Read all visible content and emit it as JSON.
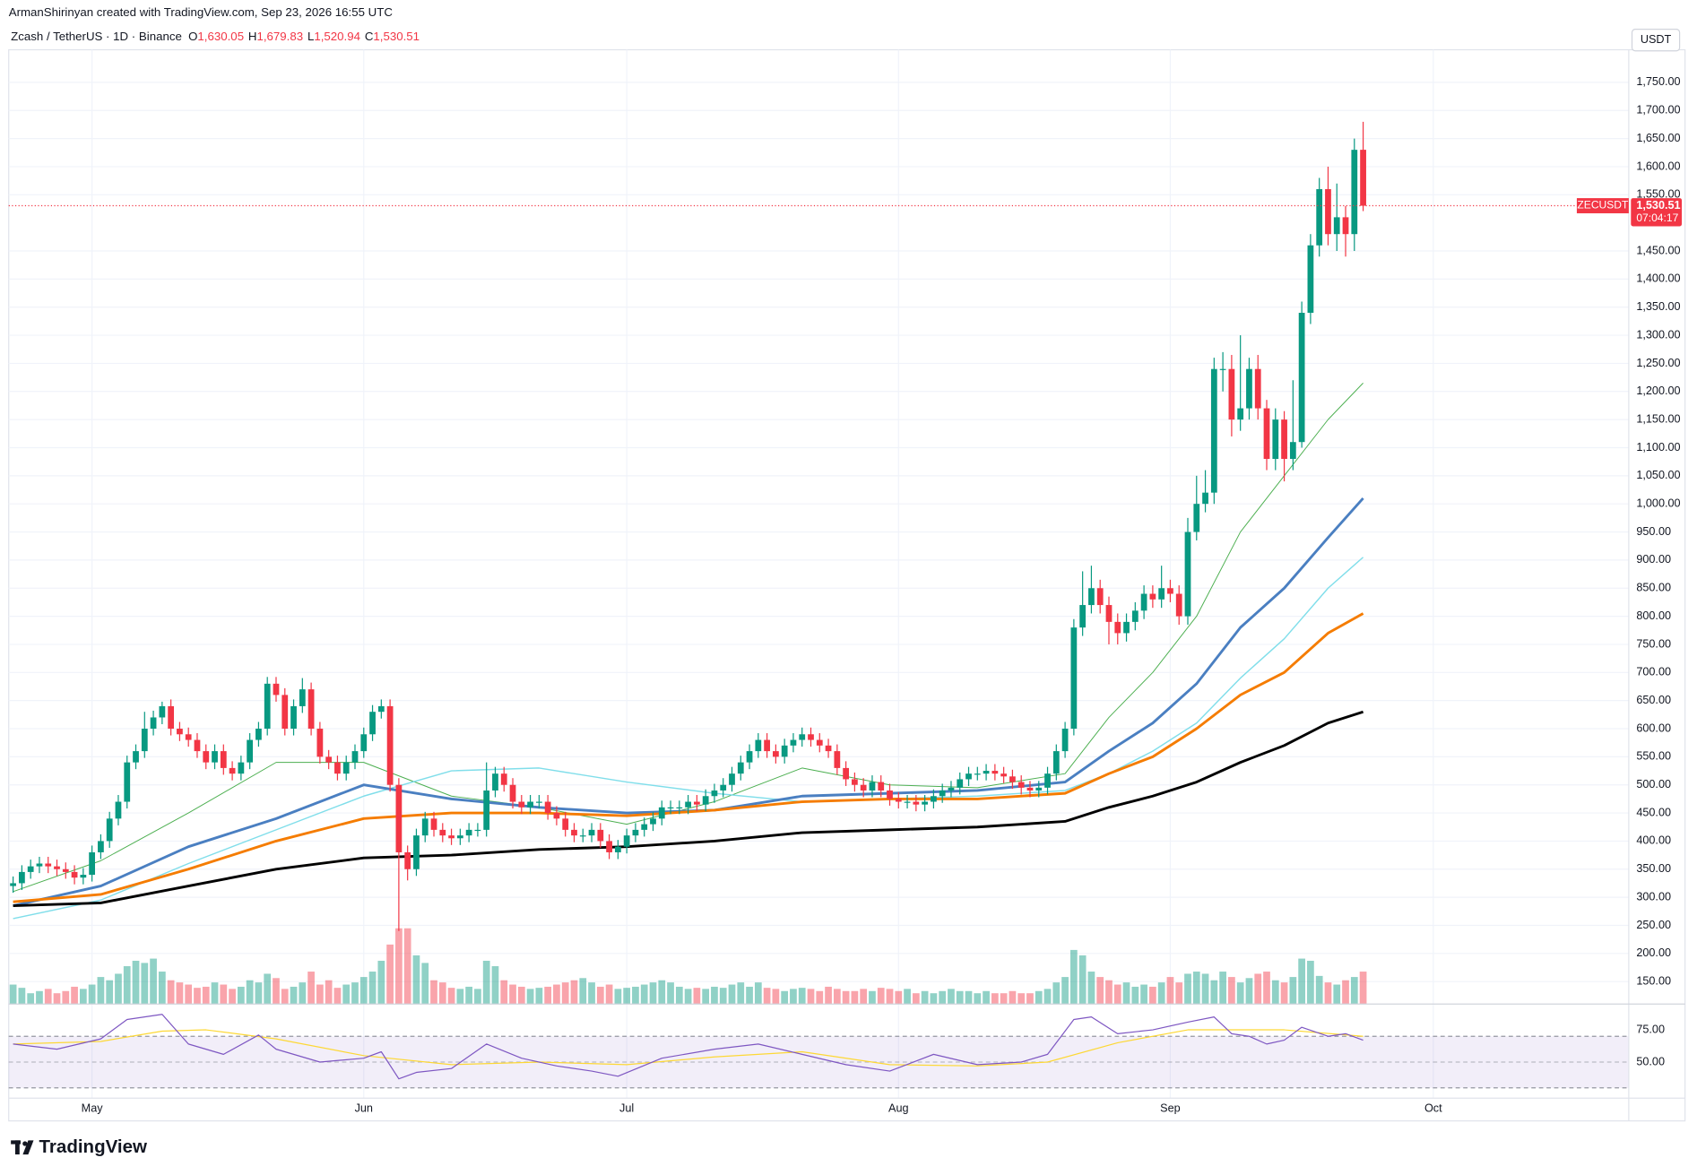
{
  "header": {
    "credit": "ArmanShirinyan created with TradingView.com, Sep 23, 2026 16:55 UTC",
    "logo": "TradingView"
  },
  "chart_data": {
    "type": "candlestick",
    "title": "Zcash / TetherUS · 1D · Binance",
    "ohlc_legend": [
      {
        "key": "O",
        "text": "1,630.05"
      },
      {
        "key": "H",
        "text": "1,679.83"
      },
      {
        "key": "L",
        "text": "1,520.94"
      },
      {
        "key": "C",
        "text": "1,530.51"
      }
    ],
    "currency": "USDT",
    "symbol_tag": "ZECUSDT",
    "price_tag": "1,530.51",
    "countdown": "07:04:17",
    "up_color": "#089981",
    "down_color": "#f23645",
    "open": [
      320,
      325,
      345,
      355,
      360,
      355,
      350,
      345,
      335,
      340,
      380,
      400,
      440,
      470,
      540,
      560,
      600,
      620,
      640,
      600,
      590,
      580,
      560,
      540,
      560,
      530,
      520,
      540,
      580,
      600,
      680,
      660,
      600,
      640,
      670,
      600,
      550,
      540,
      520,
      540,
      560,
      590,
      630,
      640,
      500,
      380,
      350,
      410,
      440,
      420,
      410,
      405,
      410,
      420,
      420,
      490,
      520,
      500,
      470,
      460,
      470,
      470,
      450,
      440,
      420,
      410,
      410,
      420,
      400,
      380,
      390,
      410,
      420,
      430,
      440,
      460,
      460,
      460,
      470,
      465,
      480,
      490,
      500,
      520,
      540,
      560,
      580,
      560,
      550,
      570,
      580,
      590,
      580,
      570,
      560,
      530,
      510,
      500,
      490,
      505,
      490,
      475,
      470,
      470,
      465,
      470,
      480,
      490,
      495,
      510,
      520,
      520,
      525,
      520,
      515,
      505,
      495,
      490,
      495,
      520,
      560,
      600,
      780,
      820,
      850,
      820,
      790,
      770,
      790,
      810,
      840,
      830,
      850,
      840,
      800,
      950,
      1000,
      1020,
      1240,
      1240,
      1150,
      1170,
      1240,
      1170,
      1080,
      1150,
      1080,
      1110,
      1340,
      1460,
      1560,
      1480,
      1510,
      1480,
      1630.05
    ],
    "high": [
      337,
      357,
      367,
      372,
      372,
      367,
      362,
      357,
      352,
      392,
      412,
      452,
      482,
      552,
      572,
      630,
      632,
      648,
      652,
      612,
      602,
      592,
      572,
      572,
      572,
      542,
      552,
      592,
      612,
      692,
      692,
      672,
      652,
      690,
      682,
      612,
      562,
      552,
      552,
      572,
      602,
      642,
      652,
      652,
      512,
      392,
      422,
      452,
      452,
      432,
      422,
      422,
      432,
      432,
      540,
      532,
      532,
      512,
      482,
      482,
      482,
      482,
      462,
      452,
      432,
      422,
      432,
      432,
      412,
      402,
      422,
      432,
      442,
      452,
      472,
      472,
      472,
      482,
      482,
      492,
      502,
      512,
      532,
      552,
      572,
      592,
      592,
      572,
      582,
      592,
      602,
      602,
      592,
      582,
      572,
      542,
      522,
      512,
      517,
      517,
      502,
      487,
      482,
      482,
      482,
      492,
      502,
      507,
      522,
      532,
      532,
      537,
      537,
      532,
      527,
      517,
      507,
      507,
      532,
      572,
      612,
      795,
      880,
      890,
      865,
      835,
      805,
      805,
      825,
      855,
      855,
      890,
      865,
      855,
      975,
      1050,
      1060,
      1260,
      1270,
      1265,
      1300,
      1260,
      1265,
      1185,
      1170,
      1165,
      1220,
      1360,
      1480,
      1580,
      1600,
      1570,
      1530,
      1650,
      1679.83
    ],
    "low": [
      308,
      313,
      333,
      343,
      343,
      338,
      333,
      323,
      323,
      328,
      368,
      388,
      428,
      458,
      528,
      548,
      588,
      608,
      588,
      578,
      568,
      548,
      528,
      528,
      518,
      508,
      508,
      528,
      568,
      588,
      648,
      588,
      588,
      628,
      588,
      538,
      528,
      508,
      508,
      528,
      548,
      578,
      618,
      488,
      240,
      330,
      338,
      398,
      408,
      398,
      393,
      393,
      398,
      408,
      408,
      478,
      488,
      458,
      448,
      448,
      458,
      438,
      428,
      408,
      398,
      398,
      398,
      388,
      368,
      368,
      378,
      398,
      408,
      418,
      428,
      448,
      448,
      448,
      453,
      453,
      468,
      478,
      488,
      508,
      528,
      548,
      548,
      538,
      538,
      558,
      568,
      568,
      558,
      548,
      518,
      498,
      488,
      478,
      478,
      478,
      463,
      458,
      458,
      453,
      453,
      458,
      468,
      478,
      483,
      498,
      508,
      508,
      508,
      503,
      493,
      483,
      478,
      478,
      483,
      508,
      548,
      588,
      765,
      805,
      805,
      750,
      750,
      755,
      775,
      795,
      815,
      815,
      825,
      785,
      785,
      935,
      985,
      1000,
      1200,
      1120,
      1130,
      1150,
      1150,
      1060,
      1060,
      1040,
      1060,
      1100,
      1320,
      1440,
      1460,
      1450,
      1440,
      1450,
      1520.94
    ],
    "close": [
      325,
      345,
      355,
      360,
      355,
      350,
      345,
      335,
      340,
      380,
      400,
      440,
      470,
      540,
      560,
      600,
      620,
      640,
      600,
      590,
      580,
      560,
      540,
      560,
      530,
      520,
      540,
      580,
      600,
      680,
      660,
      600,
      640,
      670,
      600,
      550,
      540,
      520,
      540,
      560,
      590,
      630,
      640,
      500,
      380,
      350,
      410,
      440,
      420,
      410,
      405,
      410,
      420,
      420,
      490,
      520,
      500,
      470,
      460,
      470,
      470,
      450,
      440,
      420,
      410,
      410,
      420,
      400,
      380,
      390,
      410,
      420,
      430,
      440,
      460,
      460,
      460,
      470,
      465,
      480,
      490,
      500,
      520,
      540,
      560,
      580,
      560,
      550,
      570,
      580,
      590,
      580,
      570,
      560,
      530,
      510,
      500,
      490,
      505,
      490,
      475,
      470,
      470,
      465,
      470,
      480,
      490,
      495,
      510,
      520,
      520,
      525,
      520,
      515,
      505,
      495,
      490,
      495,
      520,
      560,
      600,
      780,
      820,
      850,
      820,
      790,
      770,
      790,
      810,
      840,
      830,
      850,
      840,
      800,
      950,
      1000,
      1020,
      1240,
      1240,
      1150,
      1170,
      1240,
      1170,
      1080,
      1150,
      1080,
      1110,
      1340,
      1460,
      1560,
      1480,
      1510,
      1480,
      1630,
      1530.51
    ],
    "volume": [
      18,
      15,
      10,
      12,
      14,
      10,
      12,
      16,
      14,
      18,
      25,
      22,
      28,
      35,
      40,
      38,
      42,
      30,
      22,
      20,
      18,
      15,
      16,
      20,
      18,
      14,
      16,
      22,
      20,
      28,
      24,
      14,
      16,
      20,
      30,
      18,
      22,
      15,
      18,
      20,
      25,
      30,
      40,
      55,
      70,
      70,
      45,
      38,
      22,
      20,
      15,
      14,
      16,
      14,
      40,
      35,
      22,
      18,
      16,
      14,
      15,
      16,
      18,
      20,
      22,
      24,
      20,
      16,
      18,
      14,
      15,
      16,
      18,
      20,
      22,
      20,
      16,
      14,
      15,
      14,
      16,
      15,
      18,
      20,
      16,
      20,
      15,
      14,
      12,
      14,
      15,
      14,
      12,
      16,
      14,
      12,
      12,
      14,
      12,
      15,
      14,
      12,
      14,
      10,
      12,
      10,
      12,
      14,
      12,
      12,
      10,
      12,
      10,
      10,
      12,
      10,
      10,
      12,
      14,
      20,
      25,
      50,
      45,
      30,
      25,
      22,
      18,
      20,
      16,
      18,
      16,
      20,
      25,
      20,
      28,
      30,
      28,
      22,
      30,
      25,
      20,
      24,
      28,
      30,
      22,
      20,
      25,
      42,
      40,
      26,
      20,
      18,
      22,
      25,
      30
    ],
    "xlim": [
      -0.5,
      184.3
    ],
    "xticks": [
      {
        "value": 9,
        "label": "May"
      },
      {
        "value": 40,
        "label": "Jun"
      },
      {
        "value": 70,
        "label": "Jul"
      },
      {
        "value": 101,
        "label": "Aug"
      },
      {
        "value": 132,
        "label": "Sep"
      },
      {
        "value": 162,
        "label": "Oct"
      }
    ],
    "ylim": [
      110,
      1808
    ],
    "yticks": [
      {
        "value": 150,
        "label": "150.00"
      },
      {
        "value": 200,
        "label": "200.00"
      },
      {
        "value": 250,
        "label": "250.00"
      },
      {
        "value": 300,
        "label": "300.00"
      },
      {
        "value": 350,
        "label": "350.00"
      },
      {
        "value": 400,
        "label": "400.00"
      },
      {
        "value": 450,
        "label": "450.00"
      },
      {
        "value": 500,
        "label": "500.00"
      },
      {
        "value": 550,
        "label": "550.00"
      },
      {
        "value": 600,
        "label": "600.00"
      },
      {
        "value": 650,
        "label": "650.00"
      },
      {
        "value": 700,
        "label": "700.00"
      },
      {
        "value": 750,
        "label": "750.00"
      },
      {
        "value": 800,
        "label": "800.00"
      },
      {
        "value": 850,
        "label": "850.00"
      },
      {
        "value": 900,
        "label": "900.00"
      },
      {
        "value": 950,
        "label": "950.00"
      },
      {
        "value": 1000,
        "label": "1,000.00"
      },
      {
        "value": 1050,
        "label": "1,050.00"
      },
      {
        "value": 1100,
        "label": "1,100.00"
      },
      {
        "value": 1150,
        "label": "1,150.00"
      },
      {
        "value": 1200,
        "label": "1,200.00"
      },
      {
        "value": 1250,
        "label": "1,250.00"
      },
      {
        "value": 1300,
        "label": "1,300.00"
      },
      {
        "value": 1350,
        "label": "1,350.00"
      },
      {
        "value": 1400,
        "label": "1,400.00"
      },
      {
        "value": 1450,
        "label": "1,450.00"
      },
      {
        "value": 1550,
        "label": "1,550.00"
      },
      {
        "value": 1600,
        "label": "1,600.00"
      },
      {
        "value": 1650,
        "label": "1,650.00"
      },
      {
        "value": 1700,
        "label": "1,700.00"
      },
      {
        "value": 1750,
        "label": "1,750.00"
      }
    ],
    "grid": true,
    "moving_averages": [
      {
        "color": "#4caf50",
        "width": 0.8,
        "x": [
          0,
          10,
          20,
          30,
          40,
          50,
          60,
          70,
          80,
          90,
          100,
          110,
          120,
          125,
          130,
          135,
          140,
          145,
          150,
          154
        ],
        "values": [
          310,
          365,
          450,
          540,
          540,
          480,
          460,
          430,
          470,
          530,
          500,
          495,
          520,
          620,
          700,
          800,
          950,
          1050,
          1150,
          1215
        ]
      },
      {
        "color": "#80deea",
        "width": 1.2,
        "x": [
          0,
          10,
          20,
          30,
          40,
          50,
          60,
          70,
          80,
          90,
          100,
          110,
          120,
          125,
          130,
          135,
          140,
          145,
          150,
          154
        ],
        "values": [
          262,
          295,
          360,
          420,
          480,
          525,
          530,
          505,
          485,
          470,
          475,
          480,
          490,
          520,
          560,
          610,
          690,
          760,
          850,
          905
        ]
      },
      {
        "color": "#4a7fc1",
        "width": 2.4,
        "x": [
          0,
          10,
          20,
          30,
          40,
          50,
          60,
          70,
          80,
          90,
          100,
          110,
          120,
          125,
          130,
          135,
          140,
          145,
          150,
          154
        ],
        "values": [
          285,
          320,
          390,
          440,
          500,
          475,
          460,
          450,
          455,
          480,
          485,
          490,
          505,
          560,
          610,
          680,
          780,
          850,
          940,
          1010
        ]
      },
      {
        "color": "#f57c00",
        "width": 2.4,
        "x": [
          0,
          10,
          20,
          30,
          40,
          50,
          60,
          70,
          80,
          90,
          100,
          110,
          120,
          125,
          130,
          135,
          140,
          145,
          150,
          154
        ],
        "values": [
          292,
          305,
          350,
          400,
          440,
          450,
          450,
          445,
          455,
          470,
          475,
          475,
          485,
          520,
          550,
          600,
          660,
          700,
          770,
          805
        ]
      },
      {
        "color": "#000000",
        "width": 2.4,
        "x": [
          0,
          10,
          20,
          30,
          40,
          50,
          60,
          70,
          80,
          90,
          100,
          110,
          120,
          125,
          130,
          135,
          140,
          145,
          150,
          154
        ],
        "values": [
          285,
          290,
          320,
          350,
          370,
          375,
          385,
          390,
          400,
          415,
          420,
          425,
          435,
          460,
          480,
          505,
          540,
          570,
          610,
          630
        ]
      }
    ],
    "rsi": {
      "ylim": [
        22,
        95
      ],
      "yticks": [
        {
          "value": 50,
          "label": "50.00"
        },
        {
          "value": 75,
          "label": "75.00"
        }
      ],
      "bands": [
        30,
        70
      ],
      "band_color": "#7e57c2",
      "series": [
        {
          "color": "#7e57c2",
          "x": [
            0,
            5,
            10,
            13,
            17,
            20,
            24,
            28,
            30,
            35,
            40,
            42,
            44,
            46,
            50,
            54,
            58,
            62,
            66,
            69,
            74,
            80,
            85,
            90,
            95,
            100,
            105,
            110,
            115,
            118,
            121,
            123,
            126,
            130,
            134,
            137,
            139,
            141,
            143,
            145,
            147,
            150,
            152,
            154
          ],
          "values": [
            64,
            60,
            68,
            83,
            87,
            64,
            56,
            71,
            60,
            50,
            53,
            58,
            37,
            42,
            45,
            64,
            53,
            47,
            43,
            39,
            53,
            60,
            64,
            56,
            48,
            43,
            56,
            48,
            50,
            56,
            83,
            85,
            72,
            75,
            81,
            85,
            72,
            70,
            64,
            67,
            77,
            70,
            72,
            67
          ]
        },
        {
          "color": "#fdd835",
          "x": [
            0,
            10,
            17,
            22,
            30,
            40,
            50,
            60,
            70,
            80,
            90,
            100,
            110,
            118,
            126,
            134,
            145,
            154
          ],
          "values": [
            64,
            66,
            74,
            75,
            68,
            55,
            48,
            50,
            48,
            54,
            58,
            48,
            47,
            50,
            65,
            75,
            75,
            70
          ]
        }
      ]
    }
  }
}
